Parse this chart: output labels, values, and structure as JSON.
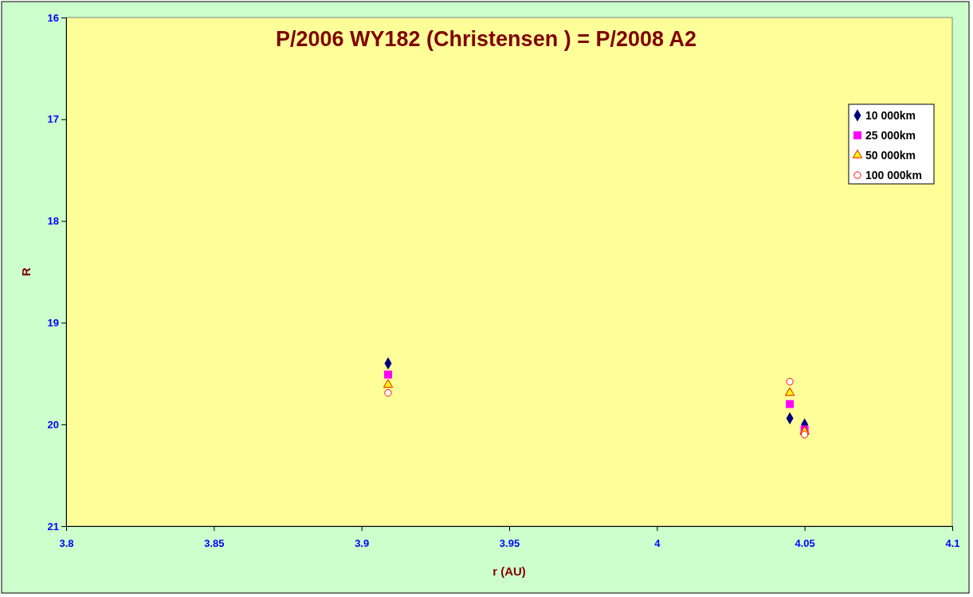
{
  "chart_data": {
    "type": "scatter",
    "title": "P/2006 WY182 (Christensen ) = P/2008 A2",
    "xlabel": "r (AU)",
    "ylabel": "R",
    "xlim": [
      3.8,
      4.1
    ],
    "xticks": [
      3.8,
      3.85,
      3.9,
      3.95,
      4,
      4.05,
      4.1
    ],
    "ylim": [
      21,
      16
    ],
    "yticks": [
      16,
      17,
      18,
      19,
      20,
      21
    ],
    "grid": false,
    "legend": "top right",
    "series": [
      {
        "name": "10 000km",
        "color": "#000080",
        "marker": "diamond",
        "x": [
          3.909,
          4.045,
          4.05
        ],
        "values": [
          19.4,
          19.94,
          20.0
        ]
      },
      {
        "name": "25 000km",
        "color": "#ff00ff",
        "marker": "square",
        "x": [
          3.909,
          4.045,
          4.05
        ],
        "values": [
          19.51,
          19.8,
          20.05
        ]
      },
      {
        "name": "50 000km",
        "color": "#ffff00",
        "marker": "triangle",
        "x": [
          3.909,
          4.045,
          4.05
        ],
        "values": [
          19.61,
          19.69,
          20.07
        ]
      },
      {
        "name": "100 000km",
        "color": "#ffffff",
        "marker": "circle",
        "x": [
          3.909,
          4.045,
          4.05
        ],
        "values": [
          19.69,
          19.58,
          20.1
        ]
      }
    ]
  }
}
